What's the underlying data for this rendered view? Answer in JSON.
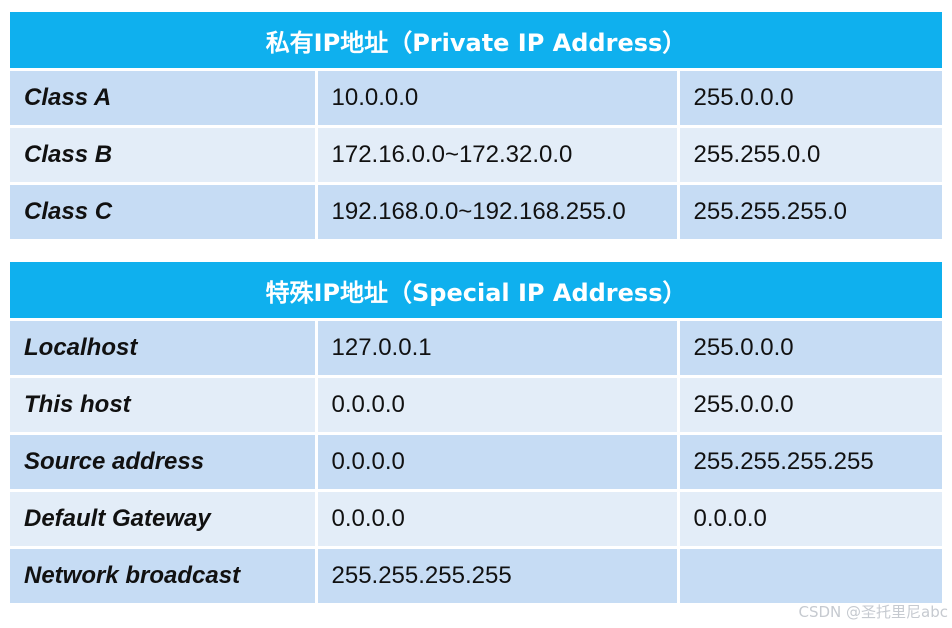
{
  "private_section": {
    "title": "私有IP地址（Private IP Address）",
    "rows": [
      {
        "label": "Class A",
        "range": "10.0.0.0",
        "mask": "255.0.0.0"
      },
      {
        "label": "Class B",
        "range": "172.16.0.0~172.32.0.0",
        "mask": "255.255.0.0"
      },
      {
        "label": "Class C",
        "range": "192.168.0.0~192.168.255.0",
        "mask": "255.255.255.0"
      }
    ]
  },
  "special_section": {
    "title": "特殊IP地址（Special IP Address）",
    "rows": [
      {
        "label": "Localhost",
        "address": "127.0.0.1",
        "mask": "255.0.0.0"
      },
      {
        "label": "This host",
        "address": "0.0.0.0",
        "mask": "255.0.0.0"
      },
      {
        "label": "Source address",
        "address": "0.0.0.0",
        "mask": "255.255.255.255"
      },
      {
        "label": "Default Gateway",
        "address": "0.0.0.0",
        "mask": "0.0.0.0"
      },
      {
        "label": "Network broadcast",
        "address": "255.255.255.255",
        "mask": ""
      }
    ]
  },
  "watermark": "CSDN @圣托里尼abc",
  "colors": {
    "header_bg": "#0fb0ee",
    "row_dark": "#c6dcf4",
    "row_light": "#e3edf8"
  }
}
